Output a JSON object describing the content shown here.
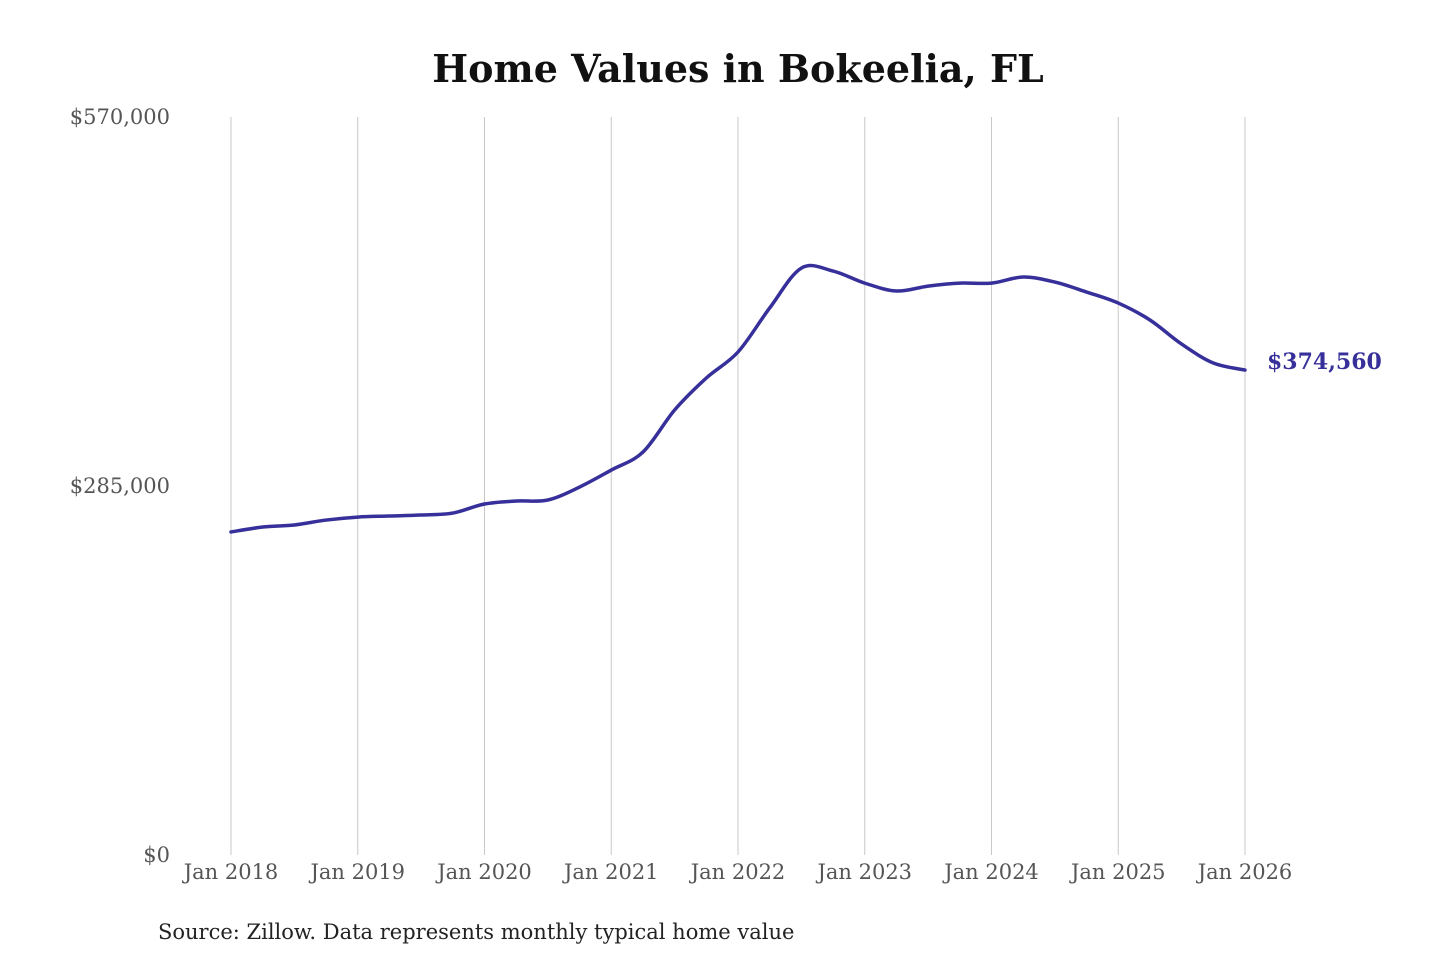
{
  "chart_data": {
    "type": "line",
    "title": "Home Values in Bokeelia, FL",
    "source": "Source: Zillow. Data represents monthly typical home value",
    "xlabel": "",
    "ylabel": "",
    "ylim": [
      0,
      570000
    ],
    "y_ticks": [
      0,
      285000,
      570000
    ],
    "y_tick_labels": [
      "$0",
      "$285,000",
      "$570,000"
    ],
    "x_ticks": [
      "2018-01",
      "2019-01",
      "2020-01",
      "2021-01",
      "2022-01",
      "2023-01",
      "2024-01",
      "2025-01",
      "2026-01"
    ],
    "x_tick_labels": [
      "Jan 2018",
      "Jan 2019",
      "Jan 2020",
      "Jan 2021",
      "Jan 2022",
      "Jan 2023",
      "Jan 2024",
      "Jan 2025",
      "Jan 2026"
    ],
    "grid": "vertical",
    "line_color": "#37309a",
    "end_label": "$374,560",
    "series": [
      {
        "x": [
          "2018-01",
          "2018-04",
          "2018-07",
          "2018-10",
          "2019-01",
          "2019-04",
          "2019-07",
          "2019-10",
          "2020-01",
          "2020-04",
          "2020-07",
          "2020-10",
          "2021-01",
          "2021-04",
          "2021-07",
          "2021-10",
          "2022-01",
          "2022-04",
          "2022-07",
          "2022-10",
          "2023-01",
          "2023-04",
          "2023-07",
          "2023-10",
          "2024-01",
          "2024-04",
          "2024-07",
          "2024-10",
          "2025-01",
          "2025-04",
          "2025-07",
          "2025-10",
          "2026-01"
        ],
        "values": [
          249500,
          253300,
          254900,
          258700,
          261000,
          261800,
          262600,
          264100,
          271100,
          273400,
          274200,
          284200,
          297300,
          311200,
          343700,
          368400,
          388500,
          422500,
          453300,
          451000,
          441700,
          435600,
          439400,
          441700,
          441700,
          446400,
          442500,
          434800,
          426300,
          413200,
          394600,
          380000,
          374560
        ]
      }
    ]
  }
}
